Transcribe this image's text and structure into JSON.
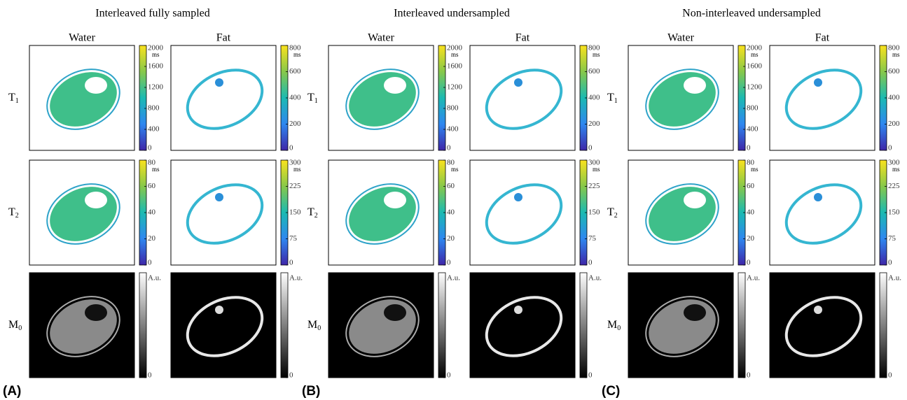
{
  "panels": [
    {
      "title": "Interleaved fully sampled",
      "label": "(A)"
    },
    {
      "title": "Interleaved undersampled",
      "label": "(B)"
    },
    {
      "title": "Non-interleaved undersampled",
      "label": "(C)"
    }
  ],
  "columns": [
    "Water",
    "Fat"
  ],
  "rows": [
    {
      "symbol": "T",
      "subscript": "1",
      "colormap": "parula",
      "colorbars": [
        {
          "unit": "ms",
          "range": [
            0,
            2000
          ],
          "ticks": [
            0,
            400,
            800,
            1200,
            1600,
            2000
          ]
        },
        {
          "unit": "ms",
          "range": [
            0,
            800
          ],
          "ticks": [
            0,
            200,
            400,
            600,
            800
          ]
        }
      ]
    },
    {
      "symbol": "T",
      "subscript": "2",
      "colormap": "parula",
      "colorbars": [
        {
          "unit": "ms",
          "range": [
            0,
            80
          ],
          "ticks": [
            0,
            20,
            40,
            60,
            80
          ]
        },
        {
          "unit": "ms",
          "range": [
            0,
            300
          ],
          "ticks": [
            0,
            75,
            150,
            225,
            300
          ]
        }
      ]
    },
    {
      "symbol": "M",
      "subscript": "0",
      "colormap": "gray",
      "colorbars": [
        {
          "unit": "A.u.",
          "ticks": [
            0
          ]
        },
        {
          "unit": "A.u.",
          "ticks": [
            0
          ]
        }
      ]
    }
  ]
}
